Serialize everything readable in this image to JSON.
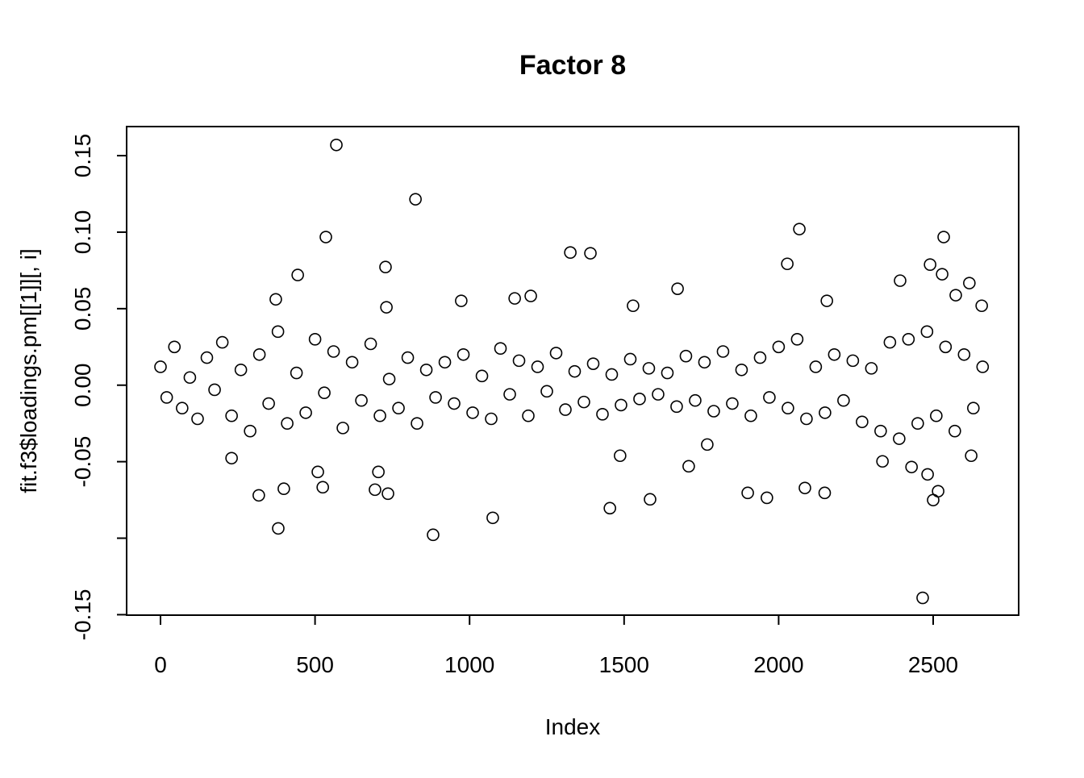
{
  "chart_data": {
    "type": "scatter",
    "title": "Factor 8",
    "x_label": "Index",
    "y_label": "fit.f3$loadings.pm[[1]][, i]",
    "xlim": [
      -109.6,
      2776.6
    ],
    "ylim": [
      -0.1503,
      0.169
    ],
    "xticks": [
      0,
      500,
      1000,
      1500,
      2000,
      2500
    ],
    "yticks": [
      {
        "value": -0.15,
        "label": "-0.15"
      },
      {
        "value": -0.1,
        "label": null
      },
      {
        "value": -0.05,
        "label": "-0.05"
      },
      {
        "value": 0,
        "label": "0.00"
      },
      {
        "value": 0.05,
        "label": "0.05"
      },
      {
        "value": 0.1,
        "label": "0.10"
      },
      {
        "value": 0.15,
        "label": "0.15"
      }
    ],
    "grid": false,
    "color": "#000000",
    "x": [
      569,
      825,
      535,
      2067,
      2534,
      1326,
      1391,
      2028,
      728,
      2490,
      2529,
      2393,
      2617,
      444,
      1673,
      973,
      2156,
      373,
      1198,
      1529,
      2657,
      1146,
      2573,
      731,
      2466,
      882,
      381,
      1075,
      1454,
      318,
      736,
      399,
      694,
      1584,
      1962,
      1900,
      2085,
      2149,
      2500,
      2516,
      1709,
      705,
      509,
      525,
      2482,
      2336,
      1769,
      1487,
      230,
      2430,
      2623,
      0,
      20,
      45,
      70,
      95,
      120,
      150,
      175,
      200,
      230,
      260,
      290,
      320,
      350,
      380,
      410,
      440,
      470,
      500,
      530,
      560,
      590,
      620,
      650,
      680,
      710,
      740,
      770,
      800,
      830,
      860,
      890,
      920,
      950,
      980,
      1010,
      1040,
      1070,
      1100,
      1130,
      1160,
      1190,
      1220,
      1250,
      1280,
      1310,
      1340,
      1370,
      1400,
      1430,
      1460,
      1490,
      1520,
      1550,
      1580,
      1610,
      1640,
      1670,
      1700,
      1730,
      1760,
      1790,
      1820,
      1850,
      1880,
      1910,
      1940,
      1970,
      2000,
      2030,
      2060,
      2090,
      2120,
      2150,
      2180,
      2210,
      2240,
      2270,
      2300,
      2330,
      2360,
      2390,
      2420,
      2450,
      2480,
      2510,
      2540,
      2570,
      2600,
      2630,
      2660
    ],
    "y": [
      0.157,
      0.1215,
      0.0968,
      0.102,
      0.0968,
      0.0867,
      0.0862,
      0.0793,
      0.0772,
      0.0788,
      0.0725,
      0.0683,
      0.0667,
      0.072,
      0.063,
      0.0551,
      0.0551,
      0.0561,
      0.0583,
      0.0519,
      0.0519,
      0.0567,
      0.0588,
      0.0509,
      -0.139,
      -0.0978,
      -0.0936,
      -0.0867,
      -0.0804,
      -0.072,
      -0.0709,
      -0.0677,
      -0.0683,
      -0.0746,
      -0.0736,
      -0.0704,
      -0.0672,
      -0.0704,
      -0.0751,
      -0.0693,
      -0.053,
      -0.0567,
      -0.0567,
      -0.0667,
      -0.0583,
      -0.0498,
      -0.0388,
      -0.0461,
      -0.0477,
      -0.0535,
      -0.0461,
      0.012,
      -0.008,
      0.025,
      -0.015,
      0.005,
      -0.022,
      0.018,
      -0.003,
      0.028,
      -0.02,
      0.01,
      -0.03,
      0.02,
      -0.012,
      0.035,
      -0.025,
      0.008,
      -0.018,
      0.03,
      -0.005,
      0.022,
      -0.028,
      0.015,
      -0.01,
      0.027,
      -0.02,
      0.004,
      -0.015,
      0.018,
      -0.025,
      0.01,
      -0.008,
      0.015,
      -0.012,
      0.02,
      -0.018,
      0.006,
      -0.022,
      0.024,
      -0.006,
      0.016,
      -0.02,
      0.012,
      -0.004,
      0.021,
      -0.016,
      0.009,
      -0.011,
      0.014,
      -0.019,
      0.007,
      -0.013,
      0.017,
      -0.009,
      0.011,
      -0.006,
      0.008,
      -0.014,
      0.019,
      -0.01,
      0.015,
      -0.017,
      0.022,
      -0.012,
      0.01,
      -0.02,
      0.018,
      -0.008,
      0.025,
      -0.015,
      0.03,
      -0.022,
      0.012,
      -0.018,
      0.02,
      -0.01,
      0.016,
      -0.024,
      0.011,
      -0.03,
      0.028,
      -0.035,
      0.03,
      -0.025,
      0.035,
      -0.02,
      0.025,
      -0.03,
      0.02,
      -0.015,
      0.012
    ]
  }
}
